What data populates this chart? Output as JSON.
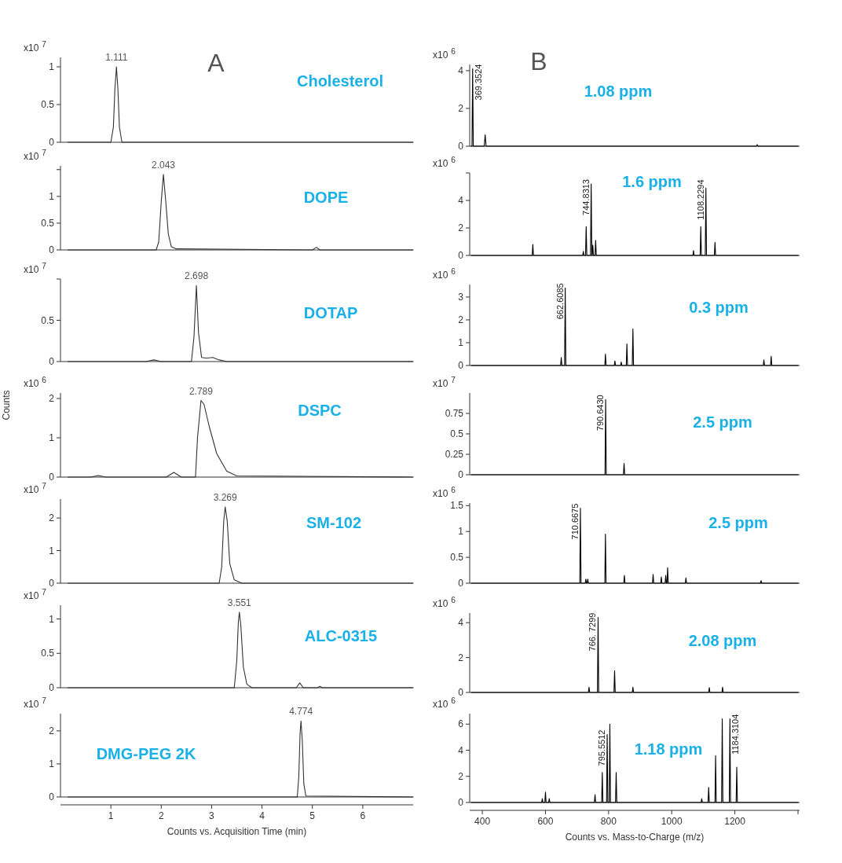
{
  "chart_data": [
    {
      "type": "line",
      "title": "Cholesterol",
      "subtitle": "x10$^{7}$",
      "annotations": [
        "A",
        {
          "text": "1.111",
          "x": 1.111,
          "y": 1.0
        }
      ],
      "color": "#333333",
      "xlim": [
        0,
        7
      ],
      "ylim": [
        0,
        1.125
      ],
      "yticks": [
        0,
        0.5,
        1
      ],
      "tick_labels": "y",
      "x": [
        0.15,
        1.0,
        1.05,
        1.08,
        1.111,
        1.14,
        1.17,
        1.22,
        7.0
      ],
      "values": [
        0,
        0,
        0.2,
        0.7,
        1.0,
        0.7,
        0.2,
        0,
        0
      ]
    },
    {
      "type": "line",
      "title": "DOPE",
      "subtitle": "x10$^{7}$",
      "annotations": [
        {
          "text": "2.043",
          "x": 2.043,
          "y": 1.41
        }
      ],
      "color": "#333333",
      "xlim": [
        0,
        7
      ],
      "ylim": [
        0,
        1.57
      ],
      "yticks": [
        0,
        0.5,
        1,
        {
          "value": 1.5,
          "label": null
        }
      ],
      "tick_labels": "y",
      "x": [
        0.15,
        1.9,
        1.95,
        2.0,
        2.043,
        2.09,
        2.14,
        2.2,
        2.3,
        5.0,
        5.08,
        5.15,
        7.0
      ],
      "values": [
        0,
        0,
        0.15,
        0.9,
        1.41,
        0.9,
        0.3,
        0.06,
        0.02,
        0,
        0.05,
        0,
        0
      ]
    },
    {
      "type": "line",
      "title": "DOTAP",
      "subtitle": "x10$^{7}$",
      "annotations": [
        {
          "text": "2.698",
          "x": 2.698,
          "y": 0.92
        }
      ],
      "color": "#333333",
      "xlim": [
        0,
        7
      ],
      "ylim": [
        0,
        1
      ],
      "yticks": [
        0,
        0.5,
        {
          "value": 1,
          "label": null
        }
      ],
      "tick_labels": "y",
      "x": [
        0.15,
        1.7,
        1.85,
        2.0,
        2.6,
        2.65,
        2.698,
        2.74,
        2.8,
        2.9,
        3.02,
        3.15,
        3.3,
        7.0
      ],
      "values": [
        0,
        0,
        0.02,
        0,
        0,
        0.3,
        0.92,
        0.35,
        0.05,
        0.04,
        0.05,
        0.02,
        0,
        0
      ]
    },
    {
      "type": "line",
      "title": "DSPC",
      "subtitle": "x10$^{6}$",
      "ylabel": "Counts",
      "annotations": [
        {
          "text": "2.789",
          "x": 2.789,
          "y": 1.95
        }
      ],
      "color": "#333333",
      "xlim": [
        0,
        7
      ],
      "ylim": [
        0,
        2.14
      ],
      "yticks": [
        0,
        1,
        2
      ],
      "tick_labels": "y",
      "x": [
        0.15,
        0.6,
        0.75,
        0.9,
        2.1,
        2.25,
        2.4,
        2.68,
        2.72,
        2.789,
        2.85,
        2.95,
        3.1,
        3.3,
        3.5,
        7.0
      ],
      "values": [
        0,
        0,
        0.04,
        0,
        0,
        0.12,
        0,
        0,
        1.0,
        1.95,
        1.85,
        1.3,
        0.6,
        0.15,
        0.03,
        0
      ]
    },
    {
      "type": "line",
      "title": "SM-102",
      "subtitle": "x10$^{7}$",
      "annotations": [
        {
          "text": "3.269",
          "x": 3.269,
          "y": 2.34
        }
      ],
      "color": "#333333",
      "xlim": [
        0,
        7
      ],
      "ylim": [
        0,
        2.58
      ],
      "yticks": [
        0,
        1,
        2
      ],
      "tick_labels": "y",
      "x": [
        0.15,
        3.15,
        3.2,
        3.24,
        3.269,
        3.31,
        3.36,
        3.45,
        3.6,
        7.0
      ],
      "values": [
        0,
        0,
        0.5,
        1.9,
        2.34,
        1.9,
        0.6,
        0.1,
        0,
        0
      ]
    },
    {
      "type": "line",
      "title": "ALC-0315",
      "subtitle": "x10$^{7}$",
      "annotations": [
        {
          "text": "3.551",
          "x": 3.551,
          "y": 1.1
        }
      ],
      "color": "#333333",
      "xlim": [
        0,
        7
      ],
      "ylim": [
        0,
        1.2
      ],
      "yticks": [
        0,
        0.5,
        1
      ],
      "tick_labels": "y",
      "x": [
        0.15,
        3.45,
        3.5,
        3.53,
        3.551,
        3.58,
        3.63,
        3.7,
        3.8,
        4.68,
        4.75,
        4.82,
        5.1,
        5.15,
        5.2,
        7.0
      ],
      "values": [
        0,
        0,
        0.4,
        0.95,
        1.1,
        0.9,
        0.3,
        0.05,
        0,
        0,
        0.07,
        0,
        0,
        0.02,
        0,
        0
      ]
    },
    {
      "type": "line",
      "title": "DMG-PEG 2K",
      "subtitle": "x10$^{7}$",
      "xlabel": "Counts vs. Acquisition Time (min)",
      "annotations": [
        {
          "text": "4.774",
          "x": 4.774,
          "y": 2.3
        }
      ],
      "color": "#333333",
      "xlim": [
        0,
        7
      ],
      "ylim": [
        0,
        2.52
      ],
      "yticks": [
        0,
        1,
        2
      ],
      "xticks": [
        1,
        2,
        3,
        4,
        5,
        6
      ],
      "x": [
        0.15,
        4.7,
        4.73,
        4.755,
        4.774,
        4.8,
        4.83,
        4.87,
        7.0
      ],
      "values": [
        0,
        0,
        0.6,
        1.9,
        2.3,
        1.7,
        0.4,
        0.03,
        0
      ]
    },
    {
      "type": "line",
      "title": "1.08 ppm",
      "subtitle": "x10$^{6}$",
      "annotations": [
        "B",
        {
          "text": "369.3524",
          "x": 369.3524,
          "y": 4.1
        }
      ],
      "color": "#000000",
      "xlim": [
        360,
        1405
      ],
      "ylim": [
        0,
        4.33
      ],
      "yticks": [
        0,
        2,
        4
      ],
      "tick_labels": "y",
      "x": [
        365,
        367.3,
        369.3524,
        371.4,
        406,
        409,
        412,
        1268,
        1271,
        1274,
        1400
      ],
      "values": [
        0,
        0,
        4.1,
        0,
        0,
        0.6,
        0,
        0,
        0.08,
        0,
        0
      ]
    },
    {
      "type": "line",
      "title": "1.6 ppm",
      "subtitle": "x10$^{6}$",
      "annotations": [
        {
          "text": "744.8313",
          "x": 744.8313,
          "y": 5.2
        },
        {
          "text": "1108.2294",
          "x": 1108.2294,
          "y": 4.9
        }
      ],
      "color": "#000000",
      "xlim": [
        360,
        1405
      ],
      "ylim": [
        0,
        6
      ],
      "yticks": [
        0,
        2,
        4,
        {
          "value": 6,
          "label": null
        }
      ],
      "tick_labels": "y",
      "x": [
        365,
        558,
        560,
        562,
        718,
        720,
        722,
        727,
        729,
        731,
        742.8,
        744.8313,
        746.8,
        748,
        750,
        752,
        757,
        759,
        761,
        1067,
        1069,
        1071,
        1090,
        1092,
        1094,
        1106.2,
        1108.2294,
        1110.2,
        1135,
        1137,
        1139,
        1400
      ],
      "values": [
        0,
        0,
        0.8,
        0,
        0,
        0.3,
        0,
        0,
        2.1,
        0,
        0,
        5.2,
        0,
        0,
        0.75,
        0,
        0,
        1.1,
        0,
        0,
        0.35,
        0,
        0,
        2.1,
        0,
        0,
        4.9,
        0,
        0,
        0.95,
        0,
        0
      ]
    },
    {
      "type": "line",
      "title": "0.3 ppm",
      "subtitle": "x10$^{6}$",
      "annotations": [
        {
          "text": "662.6085",
          "x": 662.6085,
          "y": 3.4
        }
      ],
      "color": "#000000",
      "xlim": [
        360,
        1405
      ],
      "ylim": [
        0,
        3.55
      ],
      "yticks": [
        0,
        1,
        2,
        3
      ],
      "tick_labels": "y",
      "x": [
        365,
        648,
        650,
        652,
        660.6,
        662.6085,
        664.6,
        788,
        790,
        792,
        818,
        820,
        822,
        838,
        840,
        842,
        856,
        858,
        860,
        875,
        877,
        879,
        1290,
        1292,
        1294,
        1313,
        1315,
        1317,
        1400
      ],
      "values": [
        0,
        0,
        0.35,
        0,
        0,
        3.4,
        0,
        0,
        0.5,
        0,
        0,
        0.2,
        0,
        0,
        0.15,
        0,
        0,
        0.95,
        0,
        0,
        1.6,
        0,
        0,
        0.25,
        0,
        0,
        0.4,
        0,
        0
      ]
    },
    {
      "type": "line",
      "title": "2.5 ppm",
      "subtitle": "x10$^{7}$",
      "annotations": [
        {
          "text": "790.6430",
          "x": 790.643,
          "y": 0.92
        }
      ],
      "color": "#000000",
      "xlim": [
        360,
        1405
      ],
      "ylim": [
        0,
        1
      ],
      "yticks": [
        0,
        0.25,
        0.5,
        0.75
      ],
      "tick_labels": "y",
      "x": [
        365,
        788.6,
        790.643,
        792.6,
        847,
        849,
        851,
        1400
      ],
      "values": [
        0,
        0,
        0.92,
        0,
        0,
        0.14,
        0,
        0
      ]
    },
    {
      "type": "line",
      "title": "2.5 ppm",
      "subtitle": "x10$^{6}$",
      "annotations": [
        {
          "text": "710.6675",
          "x": 710.6675,
          "y": 1.45
        }
      ],
      "color": "#000000",
      "xlim": [
        360,
        1405
      ],
      "ylim": [
        0,
        1.55
      ],
      "yticks": [
        0,
        0.5,
        1,
        1.5
      ],
      "tick_labels": "y",
      "x": [
        365,
        708.7,
        710.6675,
        712.7,
        726,
        728,
        730,
        732,
        734,
        736,
        788,
        790,
        792,
        848,
        850,
        852,
        939,
        941,
        943,
        965,
        967,
        969,
        979,
        981,
        983,
        985,
        987,
        989,
        1043,
        1045,
        1047,
        1281,
        1283,
        1285,
        1400
      ],
      "values": [
        0,
        0,
        1.45,
        0,
        0,
        0.08,
        0,
        0,
        0.08,
        0,
        0,
        0.95,
        0,
        0,
        0.15,
        0,
        0,
        0.17,
        0,
        0,
        0.12,
        0,
        0,
        0.15,
        0,
        0,
        0.3,
        0,
        0,
        0.1,
        0,
        0,
        0.05,
        0,
        0
      ]
    },
    {
      "type": "line",
      "title": "2.08 ppm",
      "subtitle": "x10$^{6}$",
      "annotations": [
        {
          "text": "766. 7299",
          "x": 766.7299,
          "y": 4.3
        }
      ],
      "color": "#000000",
      "xlim": [
        360,
        1405
      ],
      "ylim": [
        0,
        4.55
      ],
      "yticks": [
        0,
        2,
        4
      ],
      "tick_labels": "y",
      "x": [
        365,
        736,
        738,
        740,
        764.7,
        766.7299,
        768.7,
        817,
        819,
        821,
        875,
        877,
        879,
        1117,
        1119,
        1121,
        1159,
        1161,
        1163,
        1400
      ],
      "values": [
        0,
        0,
        0.3,
        0,
        0,
        4.3,
        0,
        0,
        1.25,
        0,
        0,
        0.3,
        0,
        0,
        0.28,
        0,
        0,
        0.3,
        0,
        0
      ]
    },
    {
      "type": "line",
      "title": "1.18 ppm",
      "subtitle": "x10$^{6}$",
      "xlabel": "Counts vs. Mass-to-Charge (m/z)",
      "annotations": [
        {
          "text": "795.5512",
          "x": 795.5512,
          "y": 5.2
        },
        {
          "text": "1184.3104",
          "x": 1184.3104,
          "y": 6.4
        }
      ],
      "color": "#000000",
      "xlim": [
        360,
        1405
      ],
      "ylim": [
        0,
        6.8
      ],
      "yticks": [
        0,
        2,
        4,
        6
      ],
      "xticks": [
        400,
        600,
        800,
        1000,
        1200,
        {
          "value": 1400,
          "label": null
        }
      ],
      "x": [
        365,
        588,
        590,
        592,
        598,
        600,
        602,
        610,
        612,
        614,
        755,
        757,
        759,
        778,
        780,
        782,
        793.6,
        795.5512,
        797.5,
        802,
        804,
        806,
        822,
        824,
        826,
        1093,
        1095,
        1097,
        1115,
        1117,
        1119,
        1137,
        1139,
        1141,
        1158,
        1160,
        1162,
        1182.3,
        1184.3104,
        1186.3,
        1204,
        1206,
        1208,
        1400
      ],
      "values": [
        0,
        0,
        0.3,
        0,
        0,
        0.8,
        0,
        0,
        0.3,
        0,
        0,
        0.6,
        0,
        0,
        2.3,
        0,
        0,
        5.2,
        0,
        0,
        6.0,
        0,
        0,
        2.3,
        0,
        0,
        0.3,
        0,
        0,
        1.15,
        0,
        0,
        3.6,
        0,
        0,
        6.4,
        0,
        0,
        6.4,
        0,
        0,
        2.7,
        0,
        0
      ]
    }
  ]
}
